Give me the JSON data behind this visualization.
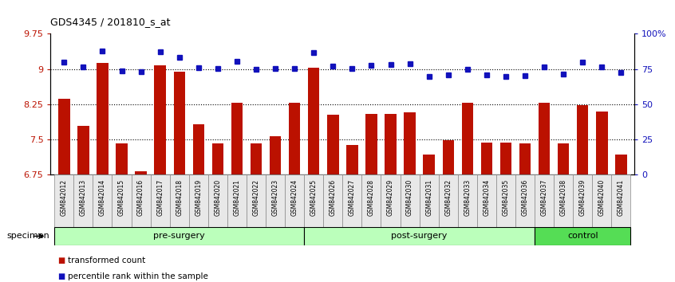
{
  "title": "GDS4345 / 201810_s_at",
  "samples": [
    "GSM842012",
    "GSM842013",
    "GSM842014",
    "GSM842015",
    "GSM842016",
    "GSM842017",
    "GSM842018",
    "GSM842019",
    "GSM842020",
    "GSM842021",
    "GSM842022",
    "GSM842023",
    "GSM842024",
    "GSM842025",
    "GSM842026",
    "GSM842027",
    "GSM842028",
    "GSM842029",
    "GSM842030",
    "GSM842031",
    "GSM842032",
    "GSM842033",
    "GSM842034",
    "GSM842035",
    "GSM842036",
    "GSM842037",
    "GSM842038",
    "GSM842039",
    "GSM842040",
    "GSM842041"
  ],
  "bar_values": [
    8.37,
    7.79,
    9.13,
    7.42,
    6.82,
    9.08,
    8.95,
    7.82,
    7.42,
    8.28,
    7.42,
    7.57,
    8.29,
    9.03,
    8.03,
    7.38,
    8.05,
    8.05,
    8.08,
    7.18,
    7.48,
    8.28,
    7.43,
    7.43,
    7.42,
    8.28,
    7.42,
    8.24,
    8.1,
    7.18
  ],
  "blue_values": [
    9.15,
    9.05,
    9.38,
    8.97,
    8.95,
    9.37,
    9.25,
    9.03,
    9.01,
    9.17,
    9.0,
    9.02,
    9.02,
    9.35,
    9.07,
    9.02,
    9.08,
    9.1,
    9.12,
    8.85,
    8.87,
    9.0,
    8.87,
    8.85,
    8.86,
    9.05,
    8.9,
    9.15,
    9.05,
    8.93
  ],
  "groups": [
    {
      "label": "pre-surgery",
      "start": 0,
      "end": 13
    },
    {
      "label": "post-surgery",
      "start": 13,
      "end": 25
    },
    {
      "label": "control",
      "start": 25,
      "end": 30
    }
  ],
  "group_colors": [
    "#bbffbb",
    "#bbffbb",
    "#55dd55"
  ],
  "ylim": [
    6.75,
    9.75
  ],
  "yticks": [
    6.75,
    7.5,
    8.25,
    9.0,
    9.75
  ],
  "ytick_labels": [
    "6.75",
    "7.5",
    "8.25",
    "9",
    "9.75"
  ],
  "right_yticks_pct": [
    0,
    25,
    50,
    75,
    100
  ],
  "right_ytick_labels": [
    "0",
    "25",
    "50",
    "75",
    "100%"
  ],
  "bar_color": "#bb1100",
  "dot_color": "#1111bb",
  "tick_color_left": "#bb1100",
  "tick_color_right": "#1111bb",
  "specimen_label": "specimen",
  "legend_items": [
    {
      "color": "#bb1100",
      "label": "transformed count"
    },
    {
      "color": "#1111bb",
      "label": "percentile rank within the sample"
    }
  ]
}
